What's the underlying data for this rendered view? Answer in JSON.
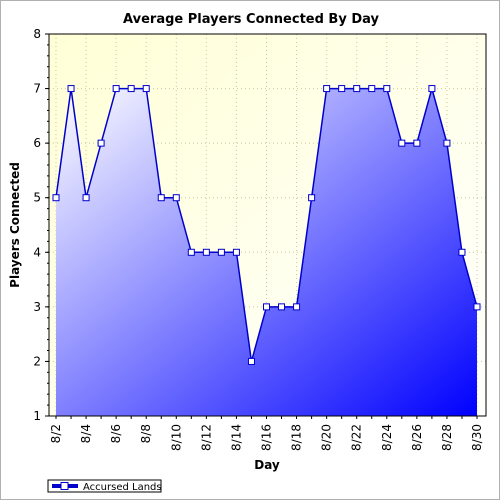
{
  "chart_data": {
    "type": "area",
    "title": "Average Players Connected By Day",
    "xlabel": "Day",
    "ylabel": "Players Connected",
    "ylim": [
      1,
      8
    ],
    "yticks": [
      1,
      2,
      3,
      4,
      5,
      6,
      7,
      8
    ],
    "x": [
      "8/2",
      "8/3",
      "8/4",
      "8/5",
      "8/6",
      "8/7",
      "8/8",
      "8/9",
      "8/10",
      "8/11",
      "8/12",
      "8/13",
      "8/14",
      "8/15",
      "8/16",
      "8/17",
      "8/18",
      "8/19",
      "8/20",
      "8/21",
      "8/22",
      "8/23",
      "8/24",
      "8/25",
      "8/26",
      "8/27",
      "8/28",
      "8/29",
      "8/30"
    ],
    "xtick_labels": [
      "8/2",
      "8/4",
      "8/6",
      "8/8",
      "8/10",
      "8/12",
      "8/14",
      "8/16",
      "8/18",
      "8/20",
      "8/22",
      "8/24",
      "8/26",
      "8/28",
      "8/30"
    ],
    "grid": true,
    "legend_position": "bottom-left",
    "series": [
      {
        "name": "Accursed Lands",
        "color": "#0000cc",
        "fill_top": "#ffffff",
        "fill_bottom": "#0000ff",
        "values": [
          5,
          7,
          5,
          6,
          7,
          7,
          7,
          5,
          5,
          4,
          4,
          4,
          4,
          2,
          3,
          3,
          3,
          5,
          7,
          7,
          7,
          7,
          7,
          6,
          6,
          7,
          6,
          4,
          3
        ]
      }
    ],
    "plot_background": "#fdfde0"
  }
}
